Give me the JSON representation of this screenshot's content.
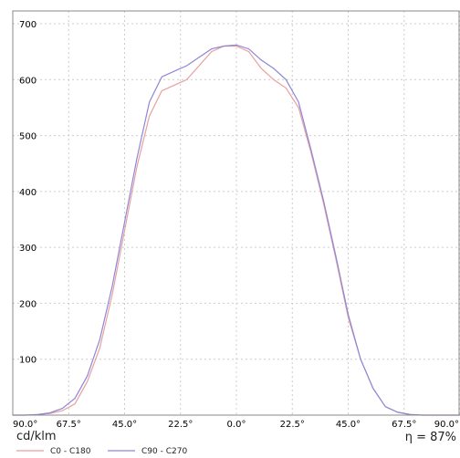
{
  "chart_data": {
    "type": "line",
    "ylabel": "cd/klm",
    "ylim": [
      0,
      700
    ],
    "yticks": [
      100,
      200,
      300,
      400,
      500,
      600,
      700
    ],
    "xlim": [
      -90,
      90
    ],
    "xticks": [
      -90,
      -67.5,
      -45,
      -22.5,
      0,
      22.5,
      45,
      67.5,
      90
    ],
    "xtick_labels": [
      "90.0°",
      "67.5°",
      "45.0°",
      "22.5°",
      "0.0°",
      "22.5°",
      "45.0°",
      "67.5°",
      "90.0°"
    ],
    "grid": true,
    "efficiency_label": "η = 87%",
    "x": [
      -90,
      -85,
      -80,
      -75,
      -70,
      -65,
      -60,
      -55,
      -50,
      -45,
      -40,
      -35,
      -30,
      -25,
      -20,
      -15,
      -10,
      -5,
      0,
      5,
      10,
      15,
      20,
      25,
      30,
      35,
      40,
      45,
      50,
      55,
      60,
      65,
      70,
      75,
      80,
      85,
      90
    ],
    "series": [
      {
        "name": "C0 - C180",
        "color": "#e8a0a0",
        "values": [
          0,
          0,
          1,
          3,
          8,
          20,
          60,
          120,
          215,
          330,
          445,
          535,
          580,
          590,
          600,
          625,
          650,
          660,
          660,
          650,
          620,
          600,
          585,
          550,
          470,
          380,
          280,
          175,
          100,
          48,
          15,
          5,
          1,
          0,
          0,
          0,
          0
        ]
      },
      {
        "name": "C90 - C270",
        "color": "#8f86d6",
        "values": [
          0,
          0,
          1,
          4,
          12,
          30,
          70,
          135,
          230,
          345,
          460,
          560,
          605,
          615,
          625,
          640,
          655,
          660,
          662,
          655,
          635,
          620,
          600,
          560,
          475,
          385,
          285,
          180,
          100,
          48,
          15,
          5,
          1,
          0,
          0,
          0,
          0
        ]
      }
    ]
  }
}
